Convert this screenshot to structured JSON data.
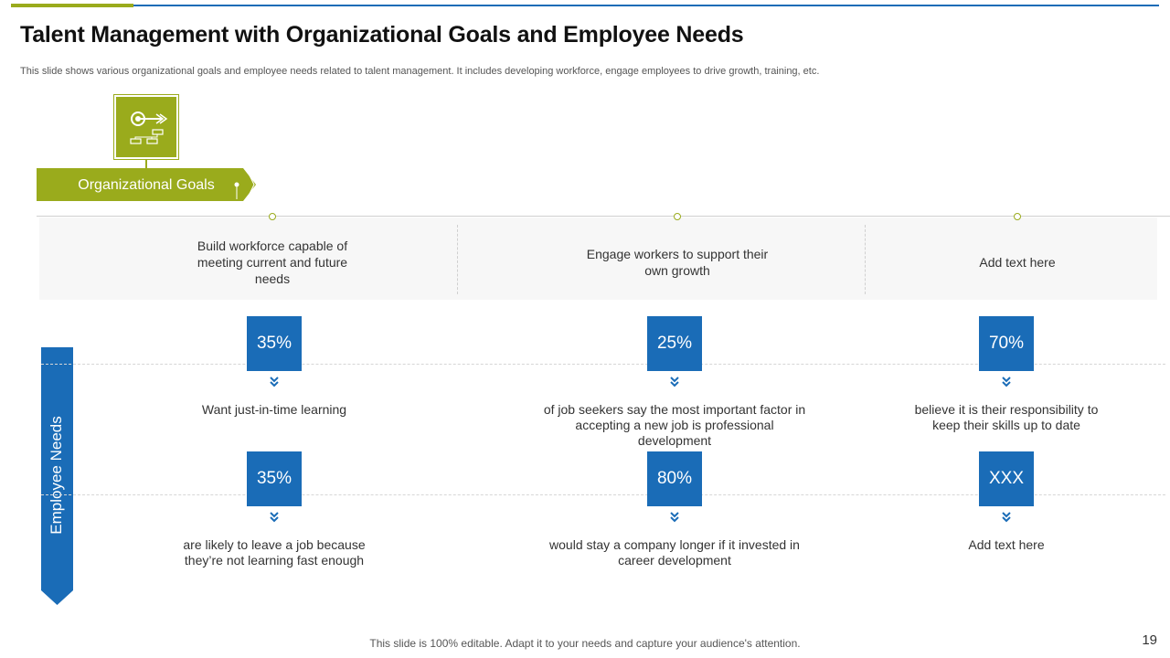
{
  "slide": {
    "title": "Talent Management with Organizational Goals and Employee Needs",
    "subtitle": "This slide shows various organizational goals and employee needs related to talent management. It includes developing workforce, engage employees to drive growth, training, etc.",
    "footer": "This slide is 100% editable. Adapt it to your needs and capture your audience's attention.",
    "page_number": "19"
  },
  "goals": {
    "label": "Organizational Goals",
    "icon": "target-flowchart-icon",
    "items": [
      "Build workforce capable of meeting current and future needs",
      "Engage workers to support their own growth",
      "Add text here"
    ]
  },
  "needs": {
    "label": "Employee Needs",
    "rows": [
      [
        {
          "value": "35%",
          "text": "Want just-in-time learning"
        },
        {
          "value": "25%",
          "text": "of job seekers say the most important factor in accepting a new job is professional development"
        },
        {
          "value": "70%",
          "text": "believe it is their responsibility to keep their skills up to date"
        }
      ],
      [
        {
          "value": "35%",
          "text": "are likely to leave a job because they’re not learning fast enough"
        },
        {
          "value": "80%",
          "text": "would stay a company longer if it invested in career development"
        },
        {
          "value": "XXX",
          "text": "Add text here"
        }
      ]
    ]
  },
  "colors": {
    "green": "#9aab1c",
    "blue": "#1a6cb7",
    "goal_strip": "#f7f7f7"
  }
}
